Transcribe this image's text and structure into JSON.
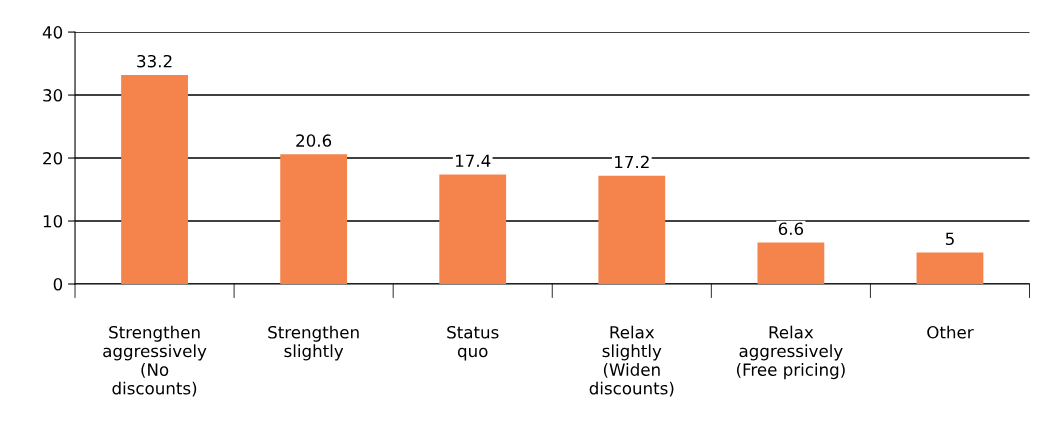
{
  "chart_data": {
    "type": "bar",
    "categories": [
      "Strengthen\naggressively\n(No\ndiscounts)",
      "Strengthen\nslightly",
      "Status\nquo",
      "Relax\nslightly\n(Widen\ndiscounts)",
      "Relax\naggressively\n(Free pricing)",
      "Other"
    ],
    "values": [
      33.2,
      20.6,
      17.4,
      17.2,
      6.6,
      5
    ],
    "color": "#f4834c",
    "ylim": [
      0,
      40
    ],
    "yticks": [
      0,
      10,
      20,
      30,
      40
    ],
    "grid": "y",
    "data_labels": true
  }
}
